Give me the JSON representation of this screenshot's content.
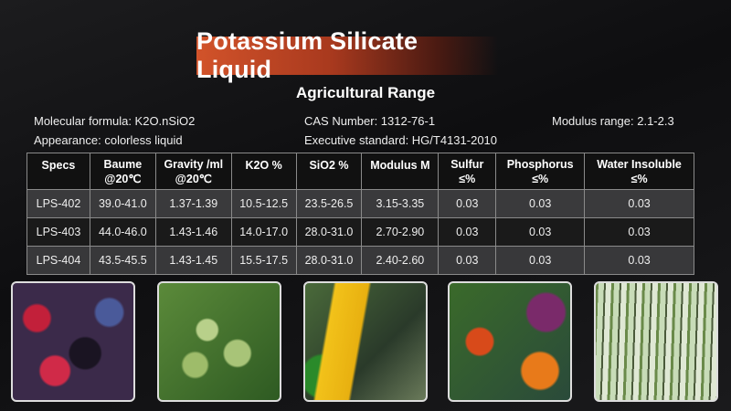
{
  "title": "Potassium Silicate Liquid",
  "subtitle": "Agricultural  Range",
  "info": {
    "molecular_formula": "Molecular formula: K2O.nSiO2",
    "appearance": "Appearance: colorless liquid",
    "cas_number": "CAS Number: 1312-76-1",
    "executive_standard": "Executive standard: HG/T4131-2010",
    "modulus_range": "Modulus range: 2.1-2.3"
  },
  "table": {
    "headers": [
      [
        "Specs",
        ""
      ],
      [
        "Baume",
        "@20℃"
      ],
      [
        "Gravity /ml",
        "@20℃"
      ],
      [
        "K2O %",
        ""
      ],
      [
        "SiO2 %",
        ""
      ],
      [
        "Modulus M",
        ""
      ],
      [
        "Sulfur",
        "≤%"
      ],
      [
        "Phosphorus",
        "≤%"
      ],
      [
        "Water Insoluble",
        "≤%"
      ]
    ],
    "rows": [
      [
        "LPS-402",
        "39.0-41.0",
        "1.37-1.39",
        "10.5-12.5",
        "23.5-26.5",
        "3.15-3.35",
        "0.03",
        "0.03",
        "0.03"
      ],
      [
        "LPS-403",
        "44.0-46.0",
        "1.43-1.46",
        "14.0-17.0",
        "28.0-31.0",
        "2.70-2.90",
        "0.03",
        "0.03",
        "0.03"
      ],
      [
        "LPS-404",
        "43.5-45.5",
        "1.43-1.45",
        "15.5-17.5",
        "28.0-31.0",
        "2.40-2.60",
        "0.03",
        "0.03",
        "0.03"
      ]
    ]
  },
  "photos": [
    "berries",
    "olives",
    "corn-and-vegetables",
    "vegetables",
    "sugarcane"
  ],
  "colors": {
    "banner": "#d2532a",
    "background": "#151517"
  }
}
